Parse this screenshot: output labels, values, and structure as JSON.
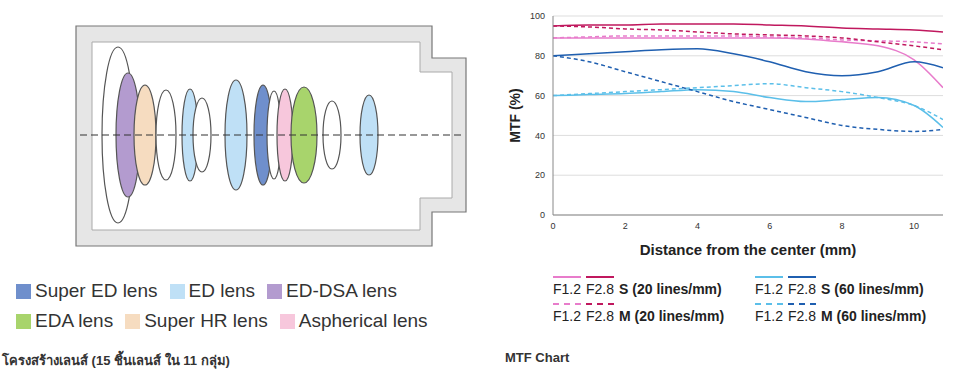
{
  "lens_diagram": {
    "caption": "โครงสร้างเลนส์ (15 ชิ้นเลนส์ ใน 11 กลุ่ม)",
    "lens_types": [
      {
        "label": "Super ED lens",
        "color": "#6f8fcc"
      },
      {
        "label": "ED lens",
        "color": "#bfe0f6"
      },
      {
        "label": "ED-DSA lens",
        "color": "#b39bcf"
      },
      {
        "label": "EDA lens",
        "color": "#a8d46c"
      },
      {
        "label": "Super HR lens",
        "color": "#f6dcc0"
      },
      {
        "label": "Aspherical lens",
        "color": "#f7c7dc"
      }
    ]
  },
  "chart_data": {
    "type": "line",
    "title": "MTF Chart",
    "x_label": "Distance from the center (mm)",
    "y_label": "MTF (%)",
    "x": [
      0,
      1,
      2,
      3,
      4,
      5,
      6,
      7,
      8,
      9,
      10,
      10.8
    ],
    "xlim": [
      0,
      10.8
    ],
    "xticks": [
      0,
      2,
      4,
      6,
      8,
      10
    ],
    "ylim": [
      0,
      100
    ],
    "yticks": [
      0,
      20,
      40,
      60,
      80,
      100
    ],
    "grid": true,
    "legend": "bottom",
    "series": [
      {
        "name": "F1.2",
        "group": "S (20 lines/mm)",
        "color": "#e87ccb",
        "line_style": "solid",
        "values": [
          89,
          89,
          89,
          89,
          89,
          89,
          89,
          88.5,
          87,
          85,
          78,
          64
        ]
      },
      {
        "name": "F2.8",
        "group": "S (20 lines/mm)",
        "color": "#c0185e",
        "line_style": "solid",
        "values": [
          95,
          95.5,
          95.5,
          96,
          96,
          96,
          95.5,
          95,
          94,
          93.5,
          93,
          92
        ]
      },
      {
        "name": "F1.2",
        "group": "S (60 lines/mm)",
        "color": "#5bbfe9",
        "line_style": "solid",
        "values": [
          60,
          60.5,
          61,
          62,
          63,
          62,
          59,
          57,
          58,
          59,
          55,
          44
        ]
      },
      {
        "name": "F2.8",
        "group": "S (60 lines/mm)",
        "color": "#1f5fb0",
        "line_style": "solid",
        "values": [
          80,
          81,
          82,
          83,
          83.5,
          81,
          77,
          72,
          70,
          72,
          77,
          74
        ]
      },
      {
        "name": "F1.2",
        "group": "M (20 lines/mm)",
        "color": "#e87ccb",
        "line_style": "dashed",
        "values": [
          89,
          89.5,
          90,
          90,
          90,
          90,
          89.5,
          89,
          88,
          87.5,
          87,
          86
        ]
      },
      {
        "name": "F2.8",
        "group": "M (20 lines/mm)",
        "color": "#c0185e",
        "line_style": "dashed",
        "values": [
          95,
          94.5,
          93.5,
          93,
          92,
          91,
          90.5,
          90,
          89,
          87,
          85,
          83
        ]
      },
      {
        "name": "F1.2",
        "group": "M (60 lines/mm)",
        "color": "#5bbfe9",
        "line_style": "dashed",
        "values": [
          60,
          61,
          62,
          63,
          64,
          65,
          66,
          64,
          62,
          59,
          55,
          48
        ]
      },
      {
        "name": "F2.8",
        "group": "M (60 lines/mm)",
        "color": "#1f5fb0",
        "line_style": "dashed",
        "values": [
          80,
          77,
          72,
          67,
          62,
          57,
          53,
          49,
          45,
          43,
          42,
          43
        ]
      }
    ]
  }
}
